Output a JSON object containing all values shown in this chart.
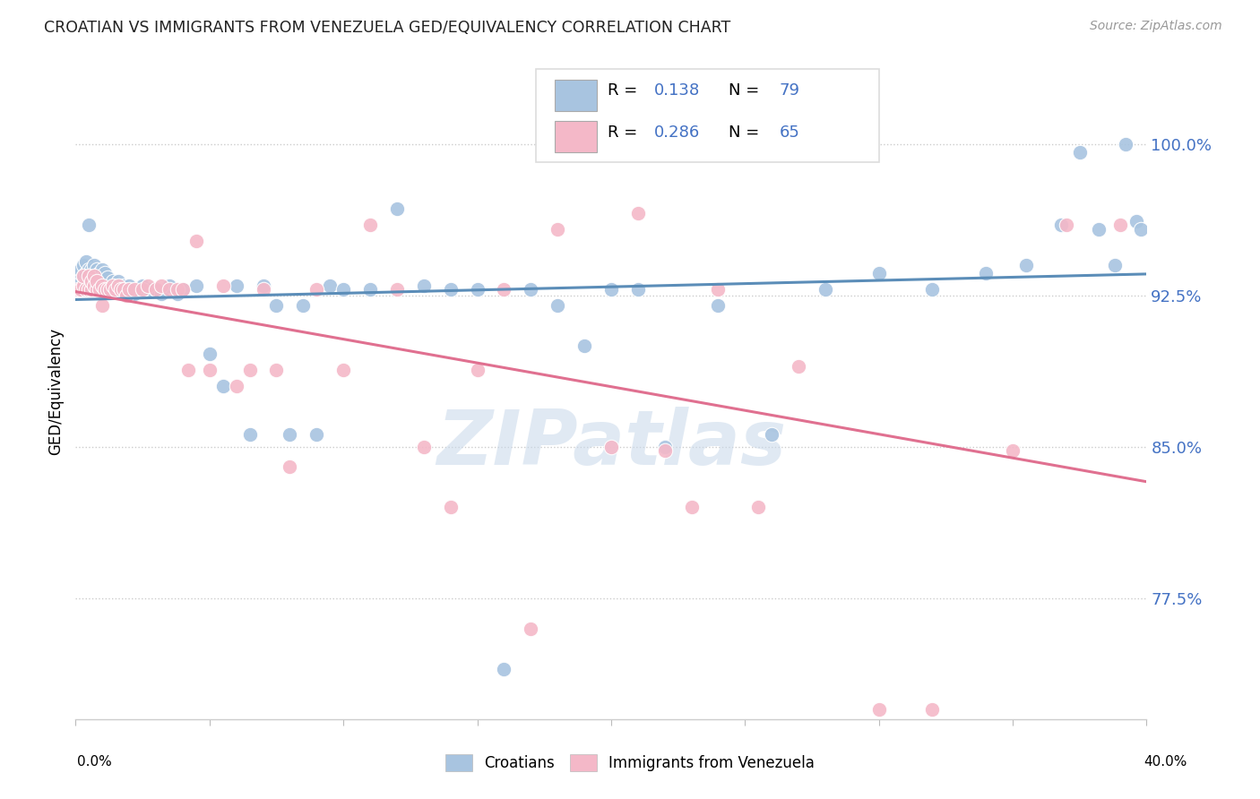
{
  "title": "CROATIAN VS IMMIGRANTS FROM VENEZUELA GED/EQUIVALENCY CORRELATION CHART",
  "source": "Source: ZipAtlas.com",
  "ylabel": "GED/Equivalency",
  "ytick_labels": [
    "77.5%",
    "85.0%",
    "92.5%",
    "100.0%"
  ],
  "ytick_values": [
    0.775,
    0.85,
    0.925,
    1.0
  ],
  "xlim": [
    0.0,
    0.4
  ],
  "ylim": [
    0.715,
    1.04
  ],
  "legend_labels": [
    "Croatians",
    "Immigrants from Venezuela"
  ],
  "blue_color": "#a8c4e0",
  "pink_color": "#f4b8c8",
  "blue_line_color": "#5b8db8",
  "pink_line_color": "#e07090",
  "watermark": "ZIPatlas",
  "blue_R": 0.138,
  "blue_N": 79,
  "pink_R": 0.286,
  "pink_N": 65,
  "blue_scatter_x": [
    0.001,
    0.002,
    0.002,
    0.003,
    0.003,
    0.004,
    0.004,
    0.005,
    0.005,
    0.006,
    0.006,
    0.007,
    0.007,
    0.008,
    0.008,
    0.009,
    0.009,
    0.01,
    0.01,
    0.011,
    0.011,
    0.012,
    0.012,
    0.013,
    0.014,
    0.015,
    0.015,
    0.016,
    0.017,
    0.018,
    0.019,
    0.02,
    0.022,
    0.023,
    0.025,
    0.028,
    0.03,
    0.032,
    0.035,
    0.038,
    0.04,
    0.045,
    0.05,
    0.055,
    0.06,
    0.065,
    0.07,
    0.075,
    0.08,
    0.085,
    0.09,
    0.095,
    0.1,
    0.11,
    0.12,
    0.13,
    0.14,
    0.15,
    0.16,
    0.17,
    0.18,
    0.19,
    0.2,
    0.21,
    0.22,
    0.24,
    0.26,
    0.28,
    0.3,
    0.32,
    0.34,
    0.355,
    0.368,
    0.375,
    0.382,
    0.388,
    0.392,
    0.396,
    0.398
  ],
  "blue_scatter_y": [
    0.932,
    0.936,
    0.938,
    0.935,
    0.94,
    0.936,
    0.942,
    0.938,
    0.96,
    0.936,
    0.938,
    0.934,
    0.94,
    0.938,
    0.932,
    0.93,
    0.936,
    0.93,
    0.938,
    0.932,
    0.936,
    0.93,
    0.934,
    0.93,
    0.932,
    0.93,
    0.928,
    0.932,
    0.928,
    0.93,
    0.928,
    0.93,
    0.926,
    0.928,
    0.93,
    0.928,
    0.928,
    0.926,
    0.93,
    0.926,
    0.928,
    0.93,
    0.896,
    0.88,
    0.93,
    0.856,
    0.93,
    0.92,
    0.856,
    0.92,
    0.856,
    0.93,
    0.928,
    0.928,
    0.968,
    0.93,
    0.928,
    0.928,
    0.74,
    0.928,
    0.92,
    0.9,
    0.928,
    0.928,
    0.85,
    0.92,
    0.856,
    0.928,
    0.936,
    0.928,
    0.936,
    0.94,
    0.96,
    0.996,
    0.958,
    0.94,
    1.0,
    0.962,
    0.958
  ],
  "pink_scatter_x": [
    0.001,
    0.002,
    0.003,
    0.003,
    0.004,
    0.005,
    0.005,
    0.006,
    0.006,
    0.007,
    0.007,
    0.008,
    0.008,
    0.009,
    0.01,
    0.01,
    0.011,
    0.012,
    0.013,
    0.014,
    0.015,
    0.016,
    0.017,
    0.018,
    0.019,
    0.02,
    0.022,
    0.025,
    0.027,
    0.03,
    0.032,
    0.035,
    0.038,
    0.04,
    0.042,
    0.045,
    0.05,
    0.055,
    0.06,
    0.065,
    0.07,
    0.075,
    0.08,
    0.09,
    0.1,
    0.11,
    0.12,
    0.13,
    0.14,
    0.15,
    0.16,
    0.17,
    0.18,
    0.2,
    0.21,
    0.22,
    0.23,
    0.24,
    0.255,
    0.27,
    0.3,
    0.32,
    0.35,
    0.37,
    0.39
  ],
  "pink_scatter_y": [
    0.928,
    0.928,
    0.93,
    0.935,
    0.928,
    0.928,
    0.935,
    0.928,
    0.932,
    0.93,
    0.935,
    0.928,
    0.932,
    0.928,
    0.93,
    0.92,
    0.928,
    0.928,
    0.928,
    0.93,
    0.928,
    0.93,
    0.928,
    0.928,
    0.925,
    0.928,
    0.928,
    0.928,
    0.93,
    0.928,
    0.93,
    0.928,
    0.928,
    0.928,
    0.888,
    0.952,
    0.888,
    0.93,
    0.88,
    0.888,
    0.928,
    0.888,
    0.84,
    0.928,
    0.888,
    0.96,
    0.928,
    0.85,
    0.82,
    0.888,
    0.928,
    0.76,
    0.958,
    0.85,
    0.966,
    0.848,
    0.82,
    0.928,
    0.82,
    0.89,
    0.72,
    0.72,
    0.848,
    0.96,
    0.96
  ]
}
